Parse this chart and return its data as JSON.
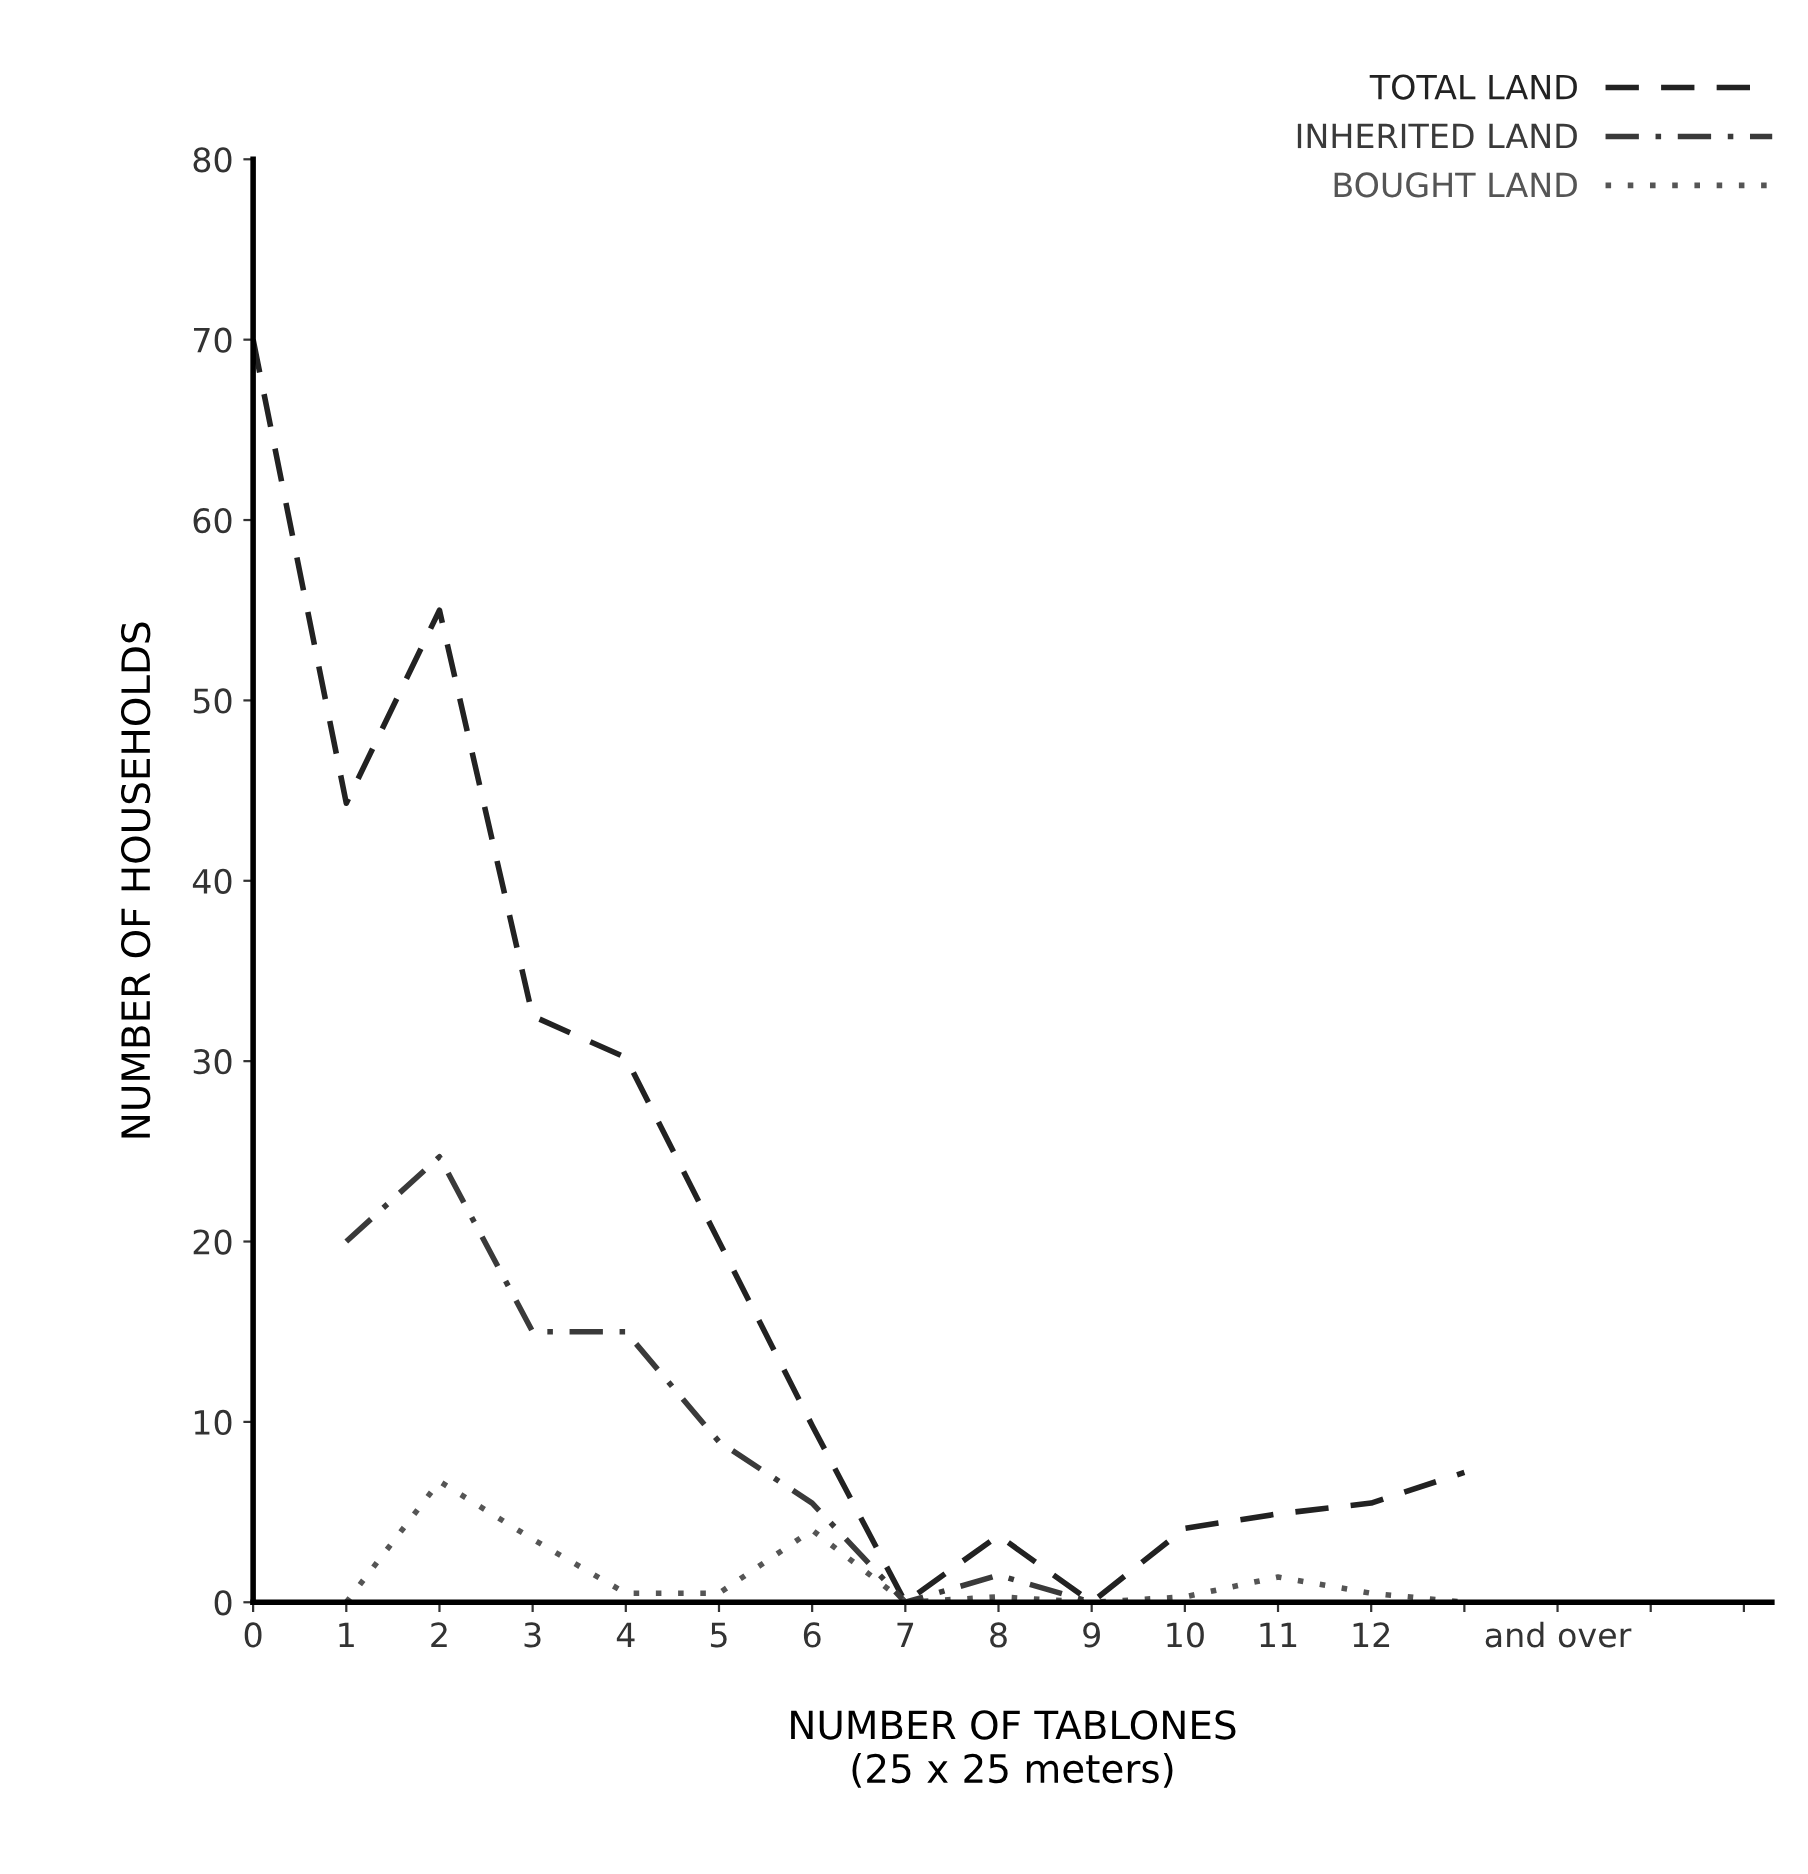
{
  "chart_data": {
    "type": "line",
    "xlabel": "NUMBER OF TABLONES\n(25 x 25 meters)",
    "ylabel": "NUMBER OF HOUSEHOLDS",
    "xlim": [
      0,
      16.3
    ],
    "ylim": [
      0,
      80
    ],
    "xticks": [
      0,
      1,
      2,
      3,
      4,
      5,
      6,
      7,
      8,
      9,
      10,
      11,
      12,
      {
        "value": 13,
        "label": null
      },
      {
        "value": 14,
        "label": "and over"
      },
      {
        "value": 15,
        "label": null
      },
      {
        "value": 16,
        "label": null
      }
    ],
    "yticks": [
      0,
      10,
      20,
      30,
      40,
      50,
      60,
      70,
      80
    ],
    "grid": false,
    "legend": "top right",
    "marker": "none",
    "series": [
      {
        "name": "TOTAL LAND",
        "color": "#222222",
        "line_style": "dashed",
        "x": [
          0,
          1,
          2,
          3,
          4,
          5,
          6,
          7,
          8,
          9,
          10,
          11,
          12,
          13
        ],
        "values": [
          70,
          44.3,
          55,
          32.5,
          30.2,
          20,
          9.8,
          0,
          3.7,
          0,
          4.1,
          4.9,
          5.5,
          7.2
        ]
      },
      {
        "name": "INHERITED LAND",
        "color": "#3a3a3a",
        "line_style": "dashdot",
        "x": [
          1,
          2,
          3,
          4,
          5,
          6,
          7,
          8,
          9
        ],
        "values": [
          20,
          24.7,
          15,
          15,
          8.9,
          5.5,
          0,
          1.5,
          0
        ]
      },
      {
        "name": "BOUGHT LAND",
        "color": "#555555",
        "line_style": "dotted",
        "x": [
          1,
          2,
          3,
          4,
          5,
          6,
          7,
          8,
          9,
          10,
          11,
          12,
          13
        ],
        "values": [
          0,
          6.7,
          3.5,
          0.5,
          0.5,
          4,
          0,
          0.3,
          0,
          0.3,
          1.4,
          0.5,
          0
        ]
      }
    ]
  }
}
